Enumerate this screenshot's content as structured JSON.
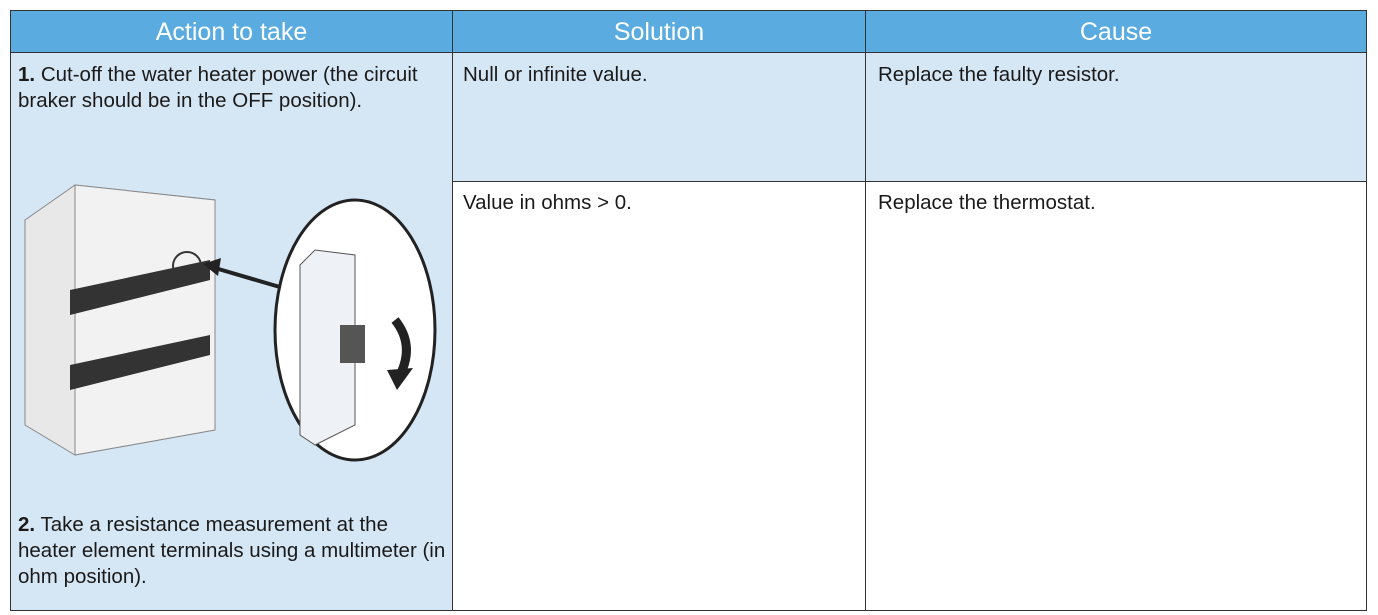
{
  "header": {
    "columns": [
      "Action to take",
      "Solution",
      "Cause"
    ]
  },
  "steps": [
    {
      "number": "1.",
      "text": "Cut-off the water heater power (the circuit braker should be in the OFF position)."
    },
    {
      "number": "2.",
      "text": "Take a resistance measurement at the heater element terminals using a multimeter (in ohm position)."
    }
  ],
  "table": {
    "rows": [
      [
        "Null or infinite value.",
        "Replace the faulty resistor."
      ],
      [
        "Value in ohms > 0.",
        "Replace the thermostat."
      ]
    ]
  }
}
